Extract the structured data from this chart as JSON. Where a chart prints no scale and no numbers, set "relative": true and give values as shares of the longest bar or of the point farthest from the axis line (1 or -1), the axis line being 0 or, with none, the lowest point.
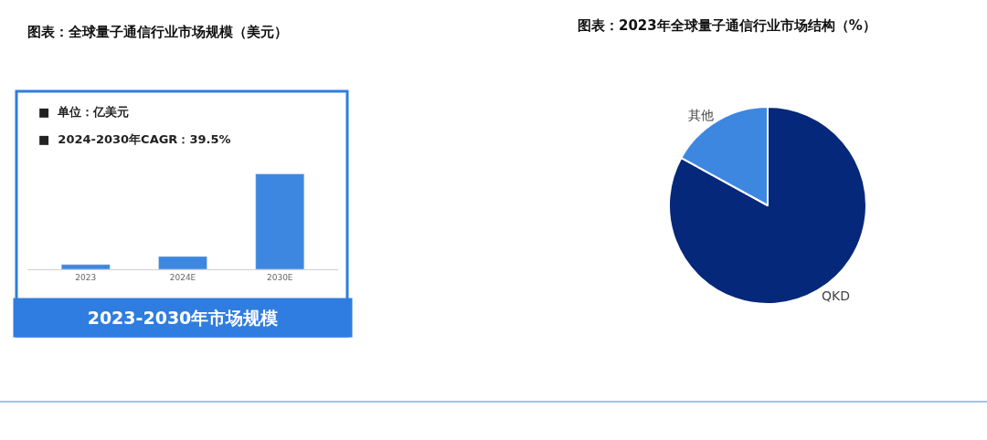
{
  "chart_data": [
    {
      "type": "bar",
      "title": "图表：全球量子通信行业市场规模（美元）",
      "relative": true,
      "categories": [
        "2023",
        "2024E",
        "2030E"
      ],
      "values": [
        0.05,
        0.135,
        1
      ],
      "color": "#3d87e0",
      "annotations": [
        "■  单位：亿美元",
        "■  2024-2030年CAGR：39.5%",
        "2023-2030年市场规模"
      ]
    },
    {
      "type": "pie",
      "title": "图表：2023年全球量子通信行业市场结构（%）",
      "categories": [
        "QKD",
        "其他"
      ],
      "values": [
        83,
        17
      ],
      "colors": [
        "#06287a",
        "#3d87e0"
      ]
    }
  ]
}
